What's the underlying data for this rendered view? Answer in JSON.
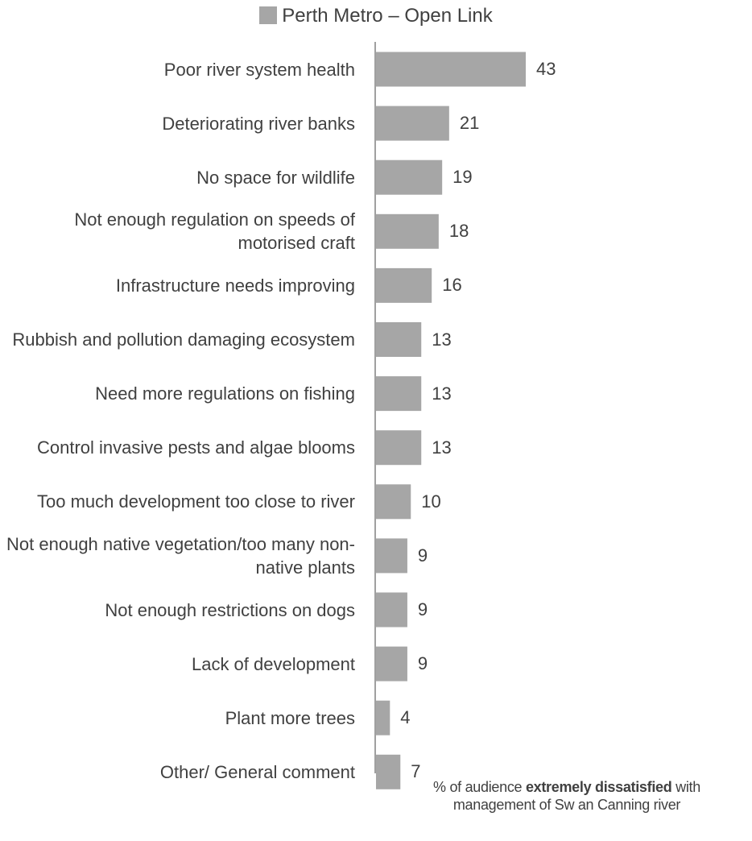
{
  "chart_data": {
    "type": "bar",
    "orientation": "horizontal",
    "categories": [
      "Poor river system health",
      "Deteriorating river banks",
      "No space for wildlife",
      "Not enough regulation on speeds of motorised craft",
      "Infrastructure needs improving",
      "Rubbish and pollution damaging ecosystem",
      "Need more regulations on fishing",
      "Control invasive pests and algae blooms",
      "Too much development too close to river",
      "Not enough native vegetation/too many non-native plants",
      "Not enough restrictions on dogs",
      "Lack of development",
      "Plant more trees",
      "Other/ General comment"
    ],
    "series": [
      {
        "name": "Perth Metro – Open Link",
        "values": [
          43,
          21,
          19,
          18,
          16,
          13,
          13,
          13,
          10,
          9,
          9,
          9,
          4,
          7
        ]
      }
    ],
    "xlim": [
      0,
      100
    ],
    "xlabel_prefix": "% of audience ",
    "xlabel_bold": "extremely dissatisfied",
    "xlabel_suffix_1": " with",
    "xlabel_line2": "management  of Sw an Canning river",
    "legend_position": "top",
    "grid": false,
    "bar_color": "#a6a6a6"
  }
}
